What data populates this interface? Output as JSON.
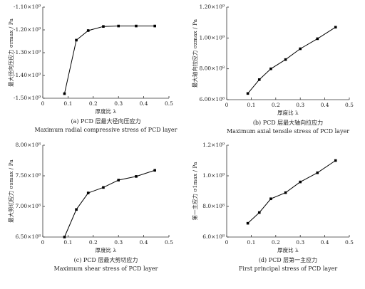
{
  "chart_data": [
    {
      "type": "line",
      "caption": "(a) PCD 层最大径向压应力",
      "caption_en": "Maximum radial compressive stress of PCD layer",
      "x_label": "厚度比 λ",
      "y_label": "最大径向压应力 σrmax / Pa",
      "color": "#000000",
      "x": [
        0.086,
        0.133,
        0.18,
        0.24,
        0.3,
        0.37,
        0.444
      ],
      "values": [
        -1480000000,
        -1245000000,
        -1203000000,
        -1185000000,
        -1183000000,
        -1183000000,
        -1183000000
      ],
      "xlim": [
        0,
        0.5
      ],
      "xticks": [
        0,
        0.1,
        0.2,
        0.3,
        0.4,
        0.5
      ],
      "ylim": [
        -1500000000,
        -1100000000
      ],
      "yticks": [
        {
          "value": -1500000000,
          "label": "-1.50×10⁹"
        },
        {
          "value": -1400000000,
          "label": "-1.40×10⁹"
        },
        {
          "value": -1300000000,
          "label": "-1.30×10⁹"
        },
        {
          "value": -1200000000,
          "label": "-1.20×10⁹"
        },
        {
          "value": -1100000000,
          "label": "-1.10×10⁹"
        }
      ]
    },
    {
      "type": "line",
      "caption": "(b) PCD 层最大轴向拉应力",
      "caption_en": "Maximum axial tensile stress of PCD layer",
      "x_label": "厚度比 λ",
      "y_label": "最大轴向拉应力 σzmax / Pa",
      "color": "#000000",
      "x": [
        0.086,
        0.133,
        0.18,
        0.24,
        0.3,
        0.37,
        0.444
      ],
      "values": [
        640000000,
        730000000,
        800000000,
        860000000,
        930000000,
        995000000,
        1070000000
      ],
      "xlim": [
        0,
        0.5
      ],
      "xticks": [
        0,
        0.1,
        0.2,
        0.3,
        0.4,
        0.5
      ],
      "ylim": [
        600000000,
        1200000000
      ],
      "yticks": [
        {
          "value": 600000000,
          "label": "6.00×10⁸"
        },
        {
          "value": 800000000,
          "label": "8.00×10⁸"
        },
        {
          "value": 1000000000,
          "label": "1.00×10⁹"
        },
        {
          "value": 1200000000,
          "label": "1.20×10⁹"
        }
      ]
    },
    {
      "type": "line",
      "caption": "(c) PCD 层最大剪切应力",
      "caption_en": "Maximum shear stress of PCD layer",
      "x_label": "厚度比 λ",
      "y_label": "最大剪切应力 σsmax / Pa",
      "color": "#000000",
      "x": [
        0.086,
        0.133,
        0.18,
        0.24,
        0.3,
        0.37,
        0.444
      ],
      "values": [
        650000000,
        695000000,
        722000000,
        731000000,
        743000000,
        749000000,
        759000000
      ],
      "xlim": [
        0,
        0.5
      ],
      "xticks": [
        0,
        0.1,
        0.2,
        0.3,
        0.4,
        0.5
      ],
      "ylim": [
        650000000,
        800000000
      ],
      "yticks": [
        {
          "value": 650000000,
          "label": "6.50×10⁸"
        },
        {
          "value": 700000000,
          "label": "7.00×10⁸"
        },
        {
          "value": 750000000,
          "label": "7.50×10⁸"
        },
        {
          "value": 800000000,
          "label": "8.00×10⁸"
        }
      ]
    },
    {
      "type": "line",
      "caption": "(d) PCD 层第一主应力",
      "caption_en": "First principal stress of PCD layer",
      "x_label": "厚度比 λ",
      "y_label": "第一主应力 σ1max / Pa",
      "color": "#000000",
      "x": [
        0.086,
        0.133,
        0.18,
        0.24,
        0.3,
        0.37,
        0.444
      ],
      "values": [
        690000000,
        760000000,
        850000000,
        890000000,
        960000000,
        1020000000,
        1100000000
      ],
      "xlim": [
        0,
        0.5
      ],
      "xticks": [
        0,
        0.1,
        0.2,
        0.3,
        0.4,
        0.5
      ],
      "ylim": [
        600000000,
        1200000000
      ],
      "yticks": [
        {
          "value": 600000000,
          "label": "6.0×10⁸"
        },
        {
          "value": 800000000,
          "label": "8.0×10⁸"
        },
        {
          "value": 1000000000,
          "label": "1.0×10⁹"
        },
        {
          "value": 1200000000,
          "label": "1.2×10⁹"
        }
      ]
    }
  ]
}
